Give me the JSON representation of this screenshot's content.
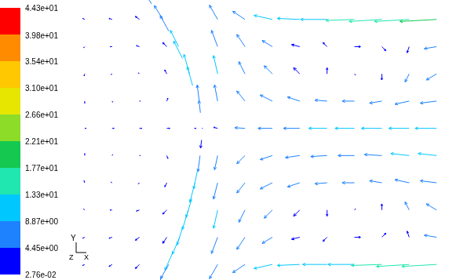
{
  "chart_data": {
    "type": "quiver",
    "xlim": [
      0,
      100
    ],
    "ylim": [
      0,
      72
    ],
    "tick_labels": false,
    "grid": false,
    "x": [
      38,
      45,
      52,
      59,
      66,
      73,
      80,
      87,
      94,
      38,
      45,
      52,
      59,
      66,
      73,
      80,
      87,
      94,
      38,
      45,
      52,
      59,
      66,
      73,
      80,
      87,
      94,
      38,
      45,
      52,
      59,
      66,
      73,
      80,
      87,
      94,
      38,
      45,
      52,
      59,
      66,
      73,
      80,
      87,
      94,
      38,
      45,
      52,
      59,
      66,
      73,
      80,
      87,
      94,
      38,
      45,
      52,
      59,
      66,
      73,
      80,
      87,
      94,
      38,
      45,
      52,
      59,
      66,
      73,
      80,
      87,
      94,
      38,
      45,
      52,
      59,
      66,
      73,
      80,
      87,
      94,
      38,
      45,
      52,
      59,
      66,
      73,
      80,
      87,
      94,
      21.1,
      24,
      25.5,
      28,
      29,
      30.8,
      31.6,
      33.3,
      33.6,
      34.1,
      33.9,
      33.5,
      32.8,
      32.2,
      31.4,
      30.5,
      29.2,
      28.3,
      26.5,
      25.5,
      23.9,
      4,
      11,
      18,
      4,
      11,
      18,
      25,
      4,
      11,
      18,
      25,
      4,
      11,
      18,
      25,
      4,
      11,
      18,
      25,
      32,
      4,
      11,
      18,
      25,
      4,
      11,
      18,
      25,
      4,
      11,
      18,
      25,
      4,
      11,
      18,
      25,
      4,
      11,
      18
    ],
    "y": [
      67,
      67,
      67,
      67,
      67,
      67,
      67,
      67,
      67,
      60,
      60,
      60,
      60,
      60,
      60,
      60,
      60,
      60,
      53,
      53,
      53,
      53,
      53,
      53,
      53,
      53,
      53,
      46,
      46,
      46,
      46,
      46,
      46,
      46,
      46,
      46,
      39,
      39,
      39,
      39,
      39,
      39,
      39,
      39,
      39,
      32,
      32,
      32,
      32,
      32,
      32,
      32,
      32,
      32,
      25,
      25,
      25,
      25,
      25,
      25,
      25,
      25,
      25,
      18,
      18,
      18,
      18,
      18,
      18,
      18,
      18,
      18,
      11,
      11,
      11,
      11,
      11,
      11,
      11,
      11,
      11,
      4,
      4,
      4,
      4,
      4,
      4,
      4,
      4,
      4,
      71,
      67,
      64,
      60,
      57,
      53,
      50,
      46,
      43,
      39,
      36,
      32,
      28,
      25,
      21,
      18,
      14,
      11,
      7,
      4,
      1,
      67,
      67,
      67,
      60,
      60,
      60,
      60,
      53,
      53,
      53,
      53,
      46,
      46,
      46,
      46,
      39,
      39,
      39,
      39,
      39,
      32,
      32,
      32,
      32,
      25,
      25,
      25,
      25,
      18,
      18,
      18,
      18,
      11,
      11,
      11,
      11,
      4,
      4,
      4
    ],
    "u": [
      -4,
      -6,
      -9,
      -11,
      -13,
      -14,
      -16,
      -17,
      -18,
      -3,
      -4,
      -5,
      -4,
      -2,
      3,
      2,
      -1,
      -6,
      -2,
      -3,
      -4,
      -3,
      0,
      0.5,
      0,
      -2,
      -5,
      -1.5,
      -4,
      -6,
      -6,
      -6,
      -6,
      -6,
      -7,
      -8,
      -2,
      -5,
      -7,
      -8,
      -9,
      -9.5,
      -10,
      -10,
      -10.5,
      -1.5,
      -4,
      -6,
      -7,
      -8,
      -8,
      -8.5,
      -9,
      -9,
      -2,
      -4,
      -6,
      -6,
      -6,
      -6,
      -6,
      -7,
      -8,
      -2,
      -3,
      -4,
      -3,
      0,
      0.5,
      0,
      -2,
      -5,
      -3,
      -4,
      -5,
      -4,
      -2,
      3,
      2,
      -1,
      -6,
      -4,
      -6,
      -9,
      -11,
      -12,
      -13,
      -15,
      -16,
      -17,
      -4.5,
      -4.2,
      -4.2,
      -4,
      -4.3,
      -2.7,
      -2.6,
      -1,
      -0.7,
      -0.3,
      -0.5,
      -1,
      -1.8,
      -2.5,
      -2.8,
      -2.9,
      -3,
      -3.6,
      -3.8,
      -4,
      -4,
      -1,
      -1.5,
      -2,
      -0.5,
      -1,
      -1.5,
      -2,
      -0.3,
      -0.5,
      -0.5,
      -1,
      0,
      0.3,
      0.5,
      0.5,
      0.8,
      1,
      1.2,
      1.5,
      1,
      0,
      0.3,
      0.5,
      0.5,
      -0.3,
      -0.5,
      -0.5,
      -1,
      -0.5,
      -1,
      -1.5,
      -2,
      -1,
      -1.5,
      -2,
      -2,
      -1,
      -1.5,
      -2
    ],
    "v": [
      7,
      4,
      2,
      0.5,
      0,
      -0.5,
      -1,
      -1,
      -1,
      8,
      6,
      3,
      1,
      2,
      0,
      -2,
      -3,
      -1,
      9,
      6,
      4,
      3,
      3,
      -0.5,
      -3,
      -4,
      -3,
      8,
      5,
      3,
      2,
      0.5,
      0,
      -1,
      -1.5,
      -1,
      0.5,
      0.3,
      0,
      0,
      0,
      0,
      0,
      0,
      0,
      -7,
      -4,
      -2,
      -1,
      -0.5,
      0,
      0.5,
      1,
      1,
      -8,
      -5,
      -3,
      -2,
      -0.5,
      0,
      1,
      1.5,
      1,
      -9,
      -6,
      -4,
      -3,
      -3,
      0.5,
      3,
      4,
      3,
      -8,
      -6,
      -3,
      -1,
      -2,
      0,
      2,
      3,
      1,
      -7,
      -4,
      -2,
      -0.5,
      0,
      0,
      -0.5,
      -1,
      -1,
      7,
      6.8,
      7.6,
      8,
      8.5,
      9.6,
      9.2,
      7.9,
      6,
      0.2,
      -4,
      -7.9,
      -8.8,
      -9.6,
      -9.4,
      -9.6,
      -9.5,
      -8.3,
      -8.5,
      -7,
      -7,
      0.5,
      0.5,
      1.5,
      -0.5,
      0,
      0.5,
      2,
      -1,
      -0.3,
      0.5,
      2,
      -1,
      -0.5,
      0,
      1.5,
      0,
      0,
      0,
      0,
      0,
      1,
      0.5,
      0,
      -1.5,
      1,
      0.3,
      -0.5,
      -2,
      0.5,
      0,
      -0.5,
      -2,
      -0.5,
      -0.5,
      -1.5,
      -3,
      -0.5,
      -1,
      -2
    ],
    "colorbar": {
      "range": [
        0.0276,
        44.3
      ],
      "ticks": [
        {
          "value": 44.3,
          "label": "4.43e+01"
        },
        {
          "value": 39.8,
          "label": "3.98e+01"
        },
        {
          "value": 35.4,
          "label": "3.54e+01"
        },
        {
          "value": 31.0,
          "label": "3.10e+01"
        },
        {
          "value": 26.6,
          "label": "2.66e+01"
        },
        {
          "value": 22.1,
          "label": "2.21e+01"
        },
        {
          "value": 17.7,
          "label": "1.77e+01"
        },
        {
          "value": 13.3,
          "label": "1.33e+01"
        },
        {
          "value": 8.87,
          "label": "8.87e+00"
        },
        {
          "value": 4.45,
          "label": "4.45e+00"
        },
        {
          "value": 0.0276,
          "label": "2.76e-02"
        }
      ],
      "colors": [
        "#0000ff",
        "#1e82ff",
        "#00c8ff",
        "#20e6b0",
        "#14c850",
        "#8cdc28",
        "#e6e600",
        "#ffc800",
        "#ff8c00",
        "#ff0000"
      ]
    },
    "triad": {
      "x": "X",
      "y": "Y",
      "z": "Z"
    }
  }
}
